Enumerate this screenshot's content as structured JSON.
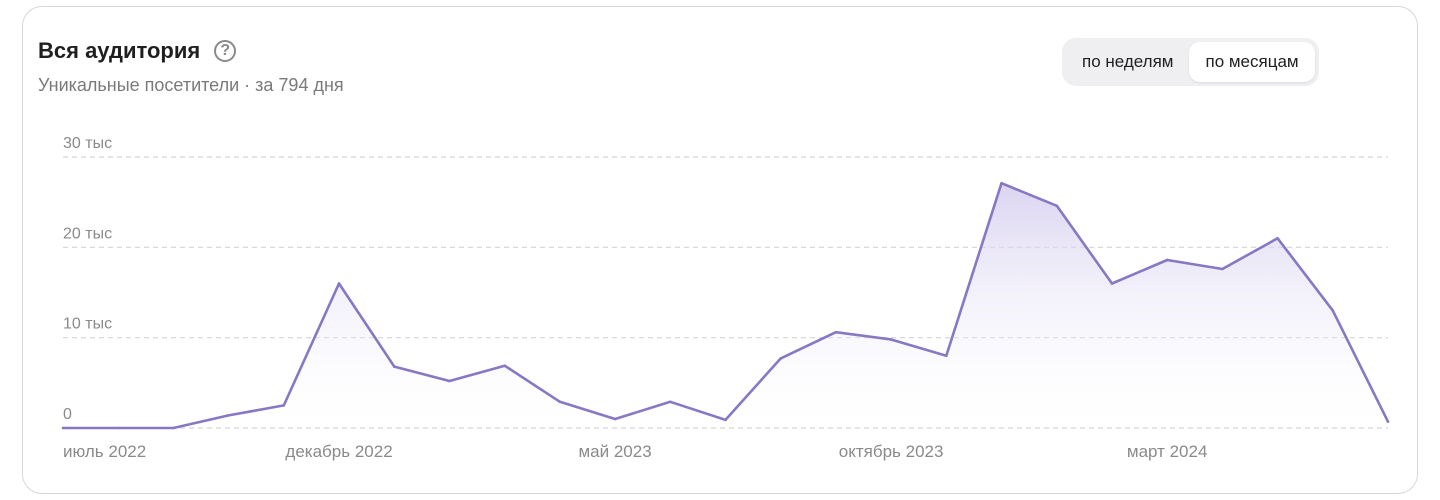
{
  "header": {
    "title": "Вся аудитория",
    "help_icon": "question-circle-icon",
    "subtitle": "Уникальные посетители · за 794 дня"
  },
  "period_toggle": {
    "options": [
      "по неделям",
      "по месяцам"
    ],
    "selected": "по месяцам"
  },
  "colors": {
    "line": "#8878c4",
    "fill_top": "#cec6ec",
    "grid": "#d4d4da",
    "axis_text": "#8a8a8a"
  },
  "chart_data": {
    "type": "area",
    "title": "Вся аудитория",
    "ylim": [
      0,
      30000
    ],
    "yticks": [
      {
        "value": 0,
        "label": "0"
      },
      {
        "value": 10000,
        "label": "10 тыс"
      },
      {
        "value": 20000,
        "label": "20 тыс"
      },
      {
        "value": 30000,
        "label": "30 тыс"
      }
    ],
    "xticks": [
      {
        "index": 0,
        "label": "июль 2022"
      },
      {
        "index": 5,
        "label": "декабрь 2022"
      },
      {
        "index": 10,
        "label": "май 2023"
      },
      {
        "index": 15,
        "label": "октябрь 2023"
      },
      {
        "index": 20,
        "label": "март 2024"
      }
    ],
    "grid": true,
    "series": [
      {
        "x": [
          "2022-07",
          "2022-08",
          "2022-09",
          "2022-10",
          "2022-11",
          "2022-12",
          "2023-01",
          "2023-02",
          "2023-03",
          "2023-04",
          "2023-05",
          "2023-06",
          "2023-07",
          "2023-08",
          "2023-09",
          "2023-10",
          "2023-11",
          "2023-12",
          "2024-01",
          "2024-02",
          "2024-03",
          "2024-04",
          "2024-05",
          "2024-06",
          "2024-07"
        ],
        "values": [
          0,
          0,
          0,
          1400,
          2500,
          16000,
          6800,
          5200,
          6900,
          2900,
          1000,
          2900,
          900,
          7700,
          10600,
          9800,
          8000,
          27100,
          24600,
          16000,
          18600,
          17600,
          21000,
          13000,
          700
        ]
      }
    ]
  }
}
